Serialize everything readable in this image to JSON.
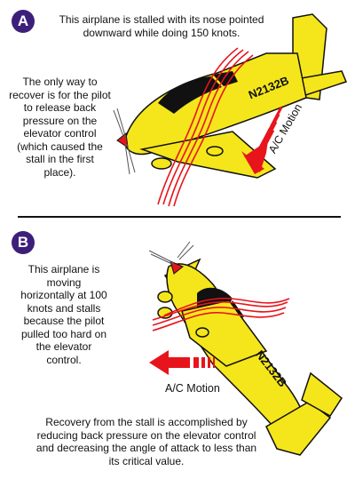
{
  "panel_a": {
    "badge": "A",
    "caption": "This airplane is stalled with its nose pointed downward while doing 150 knots.",
    "recovery_text": "The only way to recover is for the pilot to release back pressure on the elevator control (which caused the stall in the first place).",
    "registration": "N2132B",
    "motion_label": "A/C Motion"
  },
  "panel_b": {
    "badge": "B",
    "caption": "This airplane is moving horizontally at 100 knots and stalls because the pilot pulled too hard on the elevator control.",
    "registration": "N2132B",
    "motion_label": "A/C Motion",
    "recovery_text": "Recovery from the stall is accomplished by reducing back pressure on the elevator control and decreasing the angle of attack to less than its critical value."
  },
  "colors": {
    "airplane_yellow": "#f5e61b",
    "arrow_red": "#e8141c",
    "airflow_red": "#e8141c",
    "badge_purple": "#3d1f7a"
  }
}
